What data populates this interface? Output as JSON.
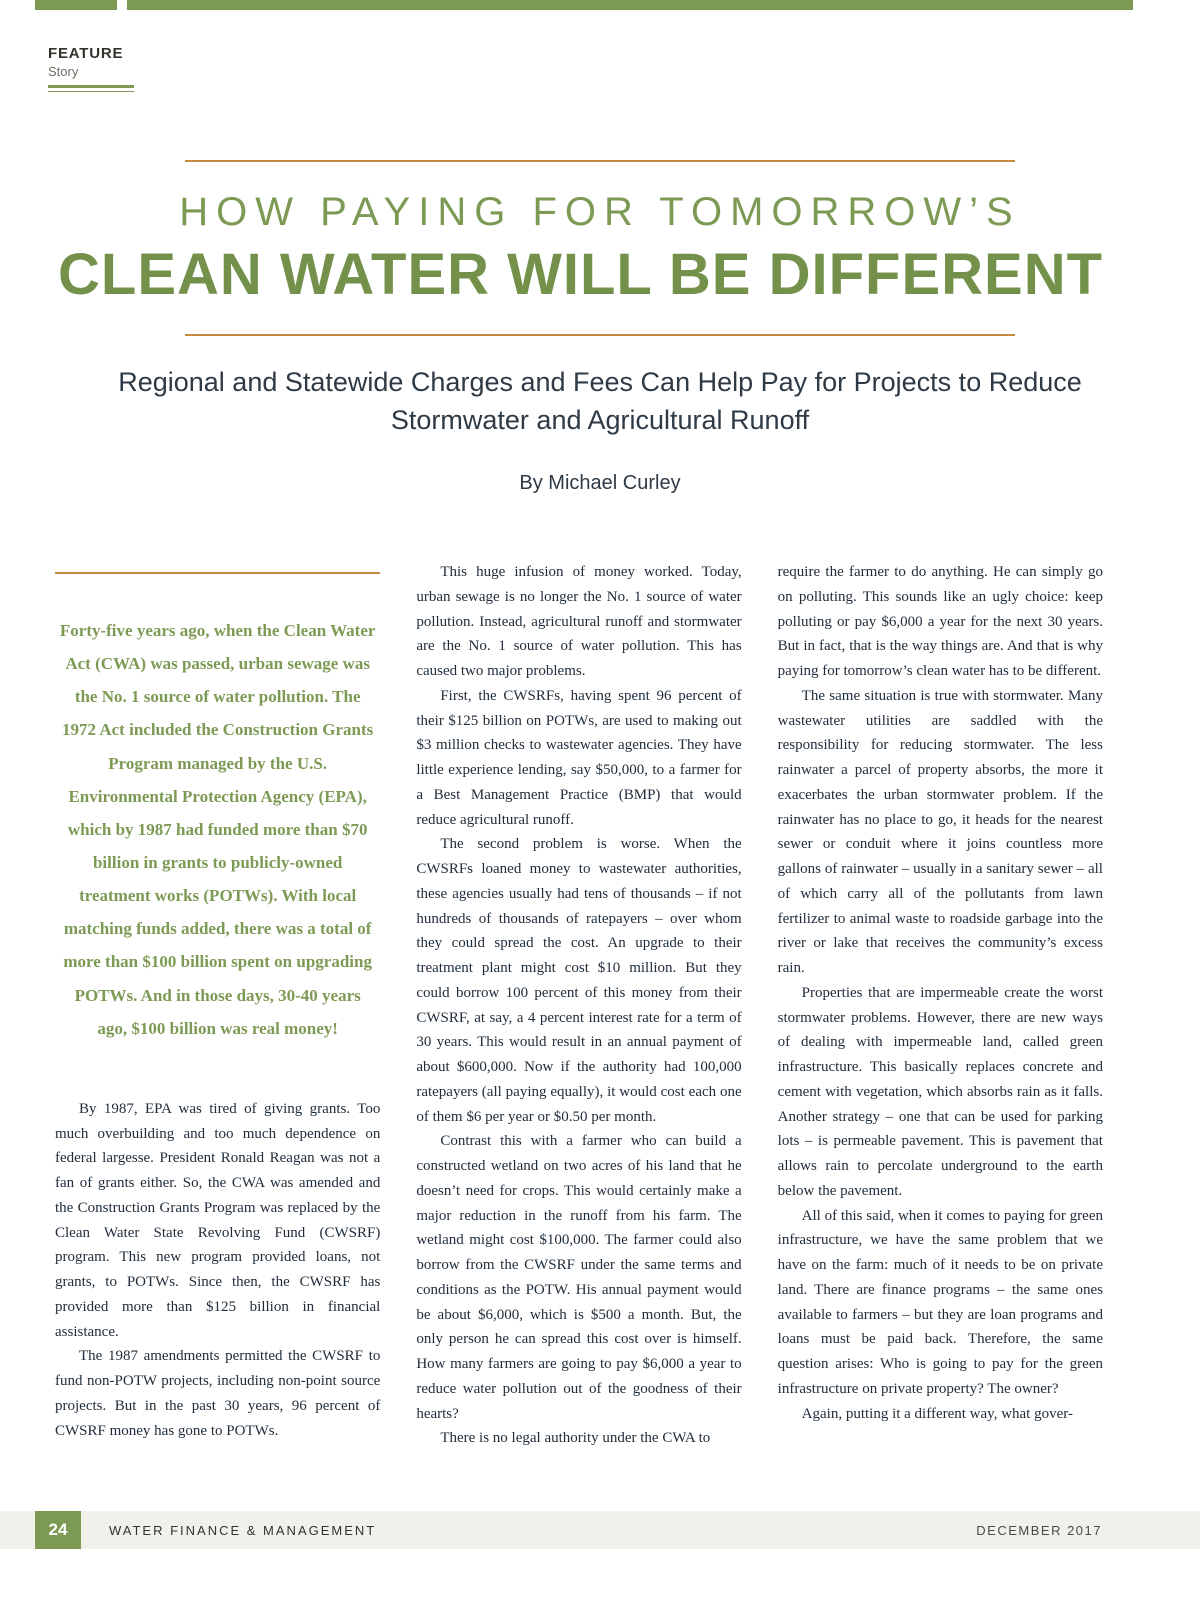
{
  "colors": {
    "green": "#7d9a55",
    "orange": "#c78a45",
    "body_text": "#1f2c39"
  },
  "badge": {
    "label": "FEATURE",
    "sublabel": "Story"
  },
  "title": {
    "line1": "HOW PAYING FOR TOMORROW’S",
    "line2": "CLEAN WATER WILL BE DIFFERENT",
    "subtitle": "Regional and Statewide Charges and Fees Can Help Pay for Projects to Reduce Stormwater and Agricultural Runoff",
    "byline": "By Michael Curley"
  },
  "pull_quote": "Forty-five years ago, when the Clean Water Act (CWA) was passed, urban sewage was the No. 1 source of water pollution. The 1972 Act included the Construction Grants Program managed by the U.S. Environmental Protection Agency (EPA), which by 1987 had funded more than $70 billion in grants to publicly-owned treatment works (POTWs). With local matching funds added, there was a total of more than $100 billion spent on upgrading POTWs. And in those days, 30-40 years ago, $100 billion was real money!",
  "columns": {
    "left": [
      "By 1987, EPA was tired of giving grants. Too much overbuilding and too much dependence on federal largesse. President Ronald Reagan was not a fan of grants either. So, the CWA was amended and the Construction Grants Program was replaced by the Clean Water State Revolving Fund (CWSRF) program. This new program provided loans, not grants, to POTWs. Since then, the CWSRF has provided more than $125 billion in financial assistance.",
      "The 1987 amendments permitted the CWSRF to fund non-POTW projects, including non-point source projects. But in the past 30 years, 96 percent of CWSRF money has gone to POTWs."
    ],
    "middle": [
      "This huge infusion of money worked. Today, urban sewage is no longer the No. 1 source of water pollution. Instead, agricultural runoff and stormwater are the No. 1 source of water pollution. This has caused two major problems.",
      "First, the CWSRFs, having spent 96 percent of their $125 billion on POTWs, are used to making out $3 million checks to wastewater agencies. They have little experience lending, say $50,000, to a farmer for a Best Management Practice (BMP) that would reduce agricultural runoff.",
      "The second problem is worse. When the CWSRFs loaned money to wastewater authorities, these agencies usually had tens of thousands – if not hundreds of thousands of ratepayers – over whom they could spread the cost. An upgrade to their treatment plant might cost $10 million. But they could borrow 100 percent of this money from their CWSRF, at say, a 4 percent interest rate for a term of 30 years. This would result in an annual payment of about $600,000. Now if the authority had 100,000 ratepayers (all paying equally), it would cost each one of them $6 per year or $0.50 per month.",
      "Contrast this with a farmer who can build a constructed wetland on two acres of his land that he doesn’t need for crops. This would certainly make a major reduction in the runoff from his farm. The wetland might cost $100,000. The farmer could also borrow from the CWSRF under the same terms and conditions as the POTW. His annual payment would be about $6,000, which is $500 a month. But, the only person he can spread this cost over is himself. How many farmers are going to pay $6,000 a year to reduce water pollution out of the goodness of their hearts?",
      "There is no legal authority under the CWA to"
    ],
    "right": [
      "require the farmer to do anything. He can simply go on polluting. This sounds like an ugly choice: keep polluting or pay $6,000 a year for the next 30 years. But in fact, that is the way things are. And that is why paying for tomorrow’s clean water has to be different.",
      "The same situation is true with stormwater. Many wastewater utilities are saddled with the responsibility for reducing stormwater. The less rainwater a parcel of property absorbs, the more it exacerbates the urban stormwater problem. If the rainwater has no place to go, it heads for the nearest sewer or conduit where it joins countless more gallons of rainwater – usually in a sanitary sewer – all of which carry all of the pollutants from lawn fertilizer to animal waste to roadside garbage into the river or lake that receives the community’s excess rain.",
      "Properties that are impermeable create the worst stormwater problems. However, there are new ways of dealing with impermeable land, called green infrastructure. This basically replaces concrete and cement with vegetation, which absorbs rain as it falls. Another strategy – one that can be used for parking lots – is permeable pavement. This is pavement that allows rain to percolate underground to the earth below the pavement.",
      "All of this said, when it comes to paying for green infrastructure, we have the same problem that we have on the farm: much of it needs to be on private land. There are finance programs – the same ones available to farmers – but they are loan programs and loans must be paid back. Therefore, the same question arises: Who is going to pay for the green infrastructure on private property? The owner?",
      "Again, putting it a different way, what gover-"
    ]
  },
  "footer": {
    "page_number": "24",
    "publication": "WATER FINANCE & MANAGEMENT",
    "date": "DECEMBER 2017"
  }
}
